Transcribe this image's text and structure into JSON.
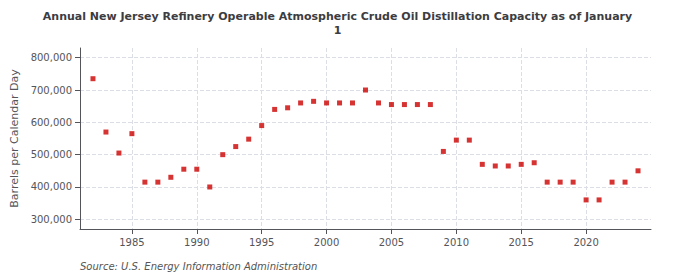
{
  "chart_data": {
    "type": "scatter",
    "title": "Annual New Jersey Refinery Operable Atmospheric Crude Oil Distillation Capacity as of January\n1",
    "ylabel": "Barrels per Calendar Day",
    "annotations": [
      "Source: U.S. Energy Information Administration"
    ],
    "x": [
      1982,
      1983,
      1984,
      1985,
      1986,
      1987,
      1988,
      1989,
      1990,
      1991,
      1992,
      1993,
      1994,
      1995,
      1996,
      1997,
      1998,
      1999,
      2000,
      2001,
      2002,
      2003,
      2004,
      2005,
      2006,
      2007,
      2008,
      2009,
      2010,
      2011,
      2012,
      2013,
      2014,
      2015,
      2016,
      2017,
      2018,
      2019,
      2020,
      2021,
      2022,
      2023,
      2024
    ],
    "values": [
      735000,
      570000,
      505000,
      565000,
      415000,
      415000,
      430000,
      455000,
      455000,
      400000,
      500000,
      525000,
      548000,
      590000,
      640000,
      645000,
      660000,
      665000,
      660000,
      660000,
      660000,
      700000,
      660000,
      655000,
      655000,
      655000,
      655000,
      510000,
      545000,
      545000,
      470000,
      465000,
      465000,
      470000,
      475000,
      415000,
      415000,
      415000,
      360000,
      360000,
      415000,
      415000,
      450000
    ],
    "color": "#cc0000",
    "marker": "square",
    "xlim": [
      1981,
      2025
    ],
    "xticks": [
      1985,
      1990,
      1995,
      2000,
      2005,
      2010,
      2015,
      2020
    ],
    "ylim": [
      270000,
      830000
    ],
    "yticks": [
      {
        "value": 300000,
        "label": "300,000"
      },
      {
        "value": 400000,
        "label": "400,000"
      },
      {
        "value": 500000,
        "label": "500,000"
      },
      {
        "value": 600000,
        "label": "600,000"
      },
      {
        "value": 700000,
        "label": "700,000"
      },
      {
        "value": 800000,
        "label": "800,000"
      }
    ],
    "grid": true
  }
}
